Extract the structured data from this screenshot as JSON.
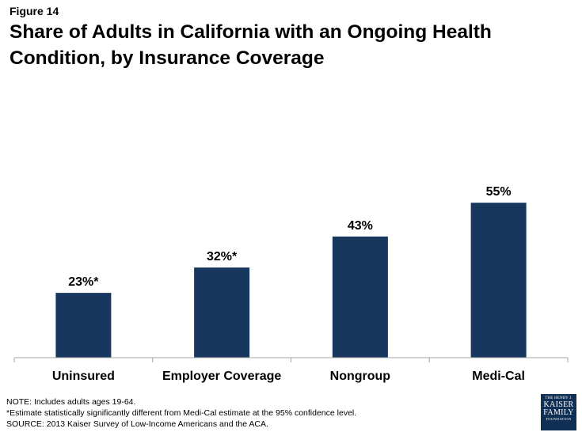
{
  "figure_label": "Figure 14",
  "chart_data": {
    "type": "bar",
    "title": "Share of Adults in California with an Ongoing Health Condition, by Insurance Coverage",
    "categories": [
      "Uninsured",
      "Employer Coverage",
      "Nongroup",
      "Medi-Cal"
    ],
    "values": [
      23,
      32,
      43,
      55
    ],
    "data_labels": [
      "23%*",
      "32%*",
      "43%",
      "55%"
    ],
    "xlabel": "",
    "ylabel": "",
    "ylim": [
      0,
      100
    ],
    "grid": false,
    "bar_color": "#17375e"
  },
  "notes": {
    "note": "NOTE: Includes adults ages 19-64.",
    "footnote": "*Estimate statistically significantly different from Medi-Cal estimate  at the 95% confidence level.",
    "source": "SOURCE: 2013 Kaiser Survey of Low-Income Americans and the ACA."
  },
  "logo": {
    "line1": "THE HENRY J.",
    "line2": "KAISER",
    "line3": "FAMILY",
    "line4": "FOUNDATION"
  }
}
